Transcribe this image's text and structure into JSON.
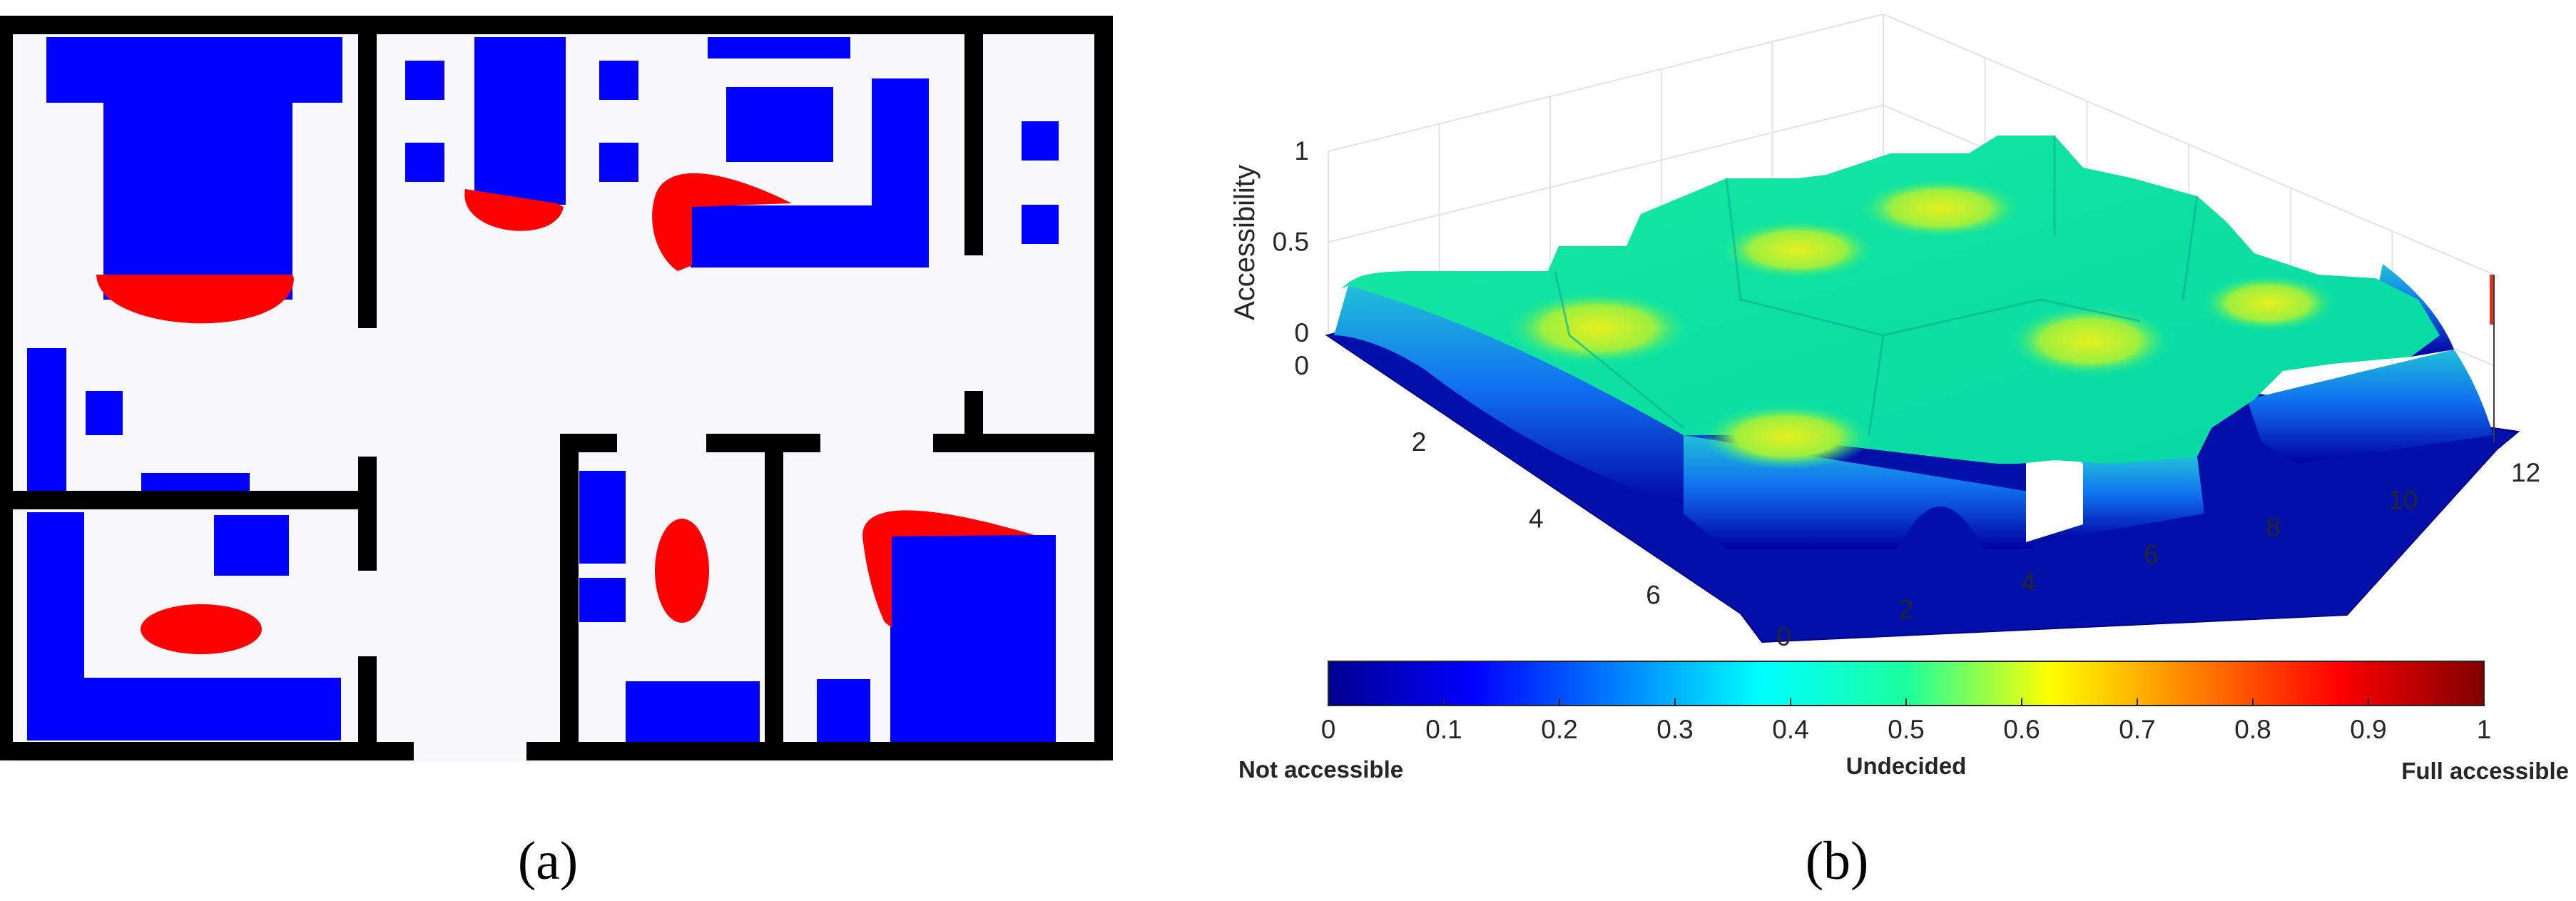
{
  "captions": {
    "a": "(a)",
    "b": "(b)"
  },
  "colors": {
    "wall": "#000000",
    "furniture": "#0000ff",
    "hotspot": "#ff0000",
    "floor": "#f8f8fc",
    "surface_low": "#0000a0",
    "surface_high": "#00e08c",
    "surface_peak": "#e6f01e"
  },
  "chart_data": [
    {
      "type": "heatmap",
      "title": "",
      "description_label": "(a)",
      "legend": []
    },
    {
      "type": "surface",
      "title": "",
      "zlabel": "Accessibility",
      "xlabel": "",
      "ylabel": "",
      "zlim": [
        0,
        1
      ],
      "z_ticks": [
        "0",
        "0.5",
        "1"
      ],
      "y_ticks": [
        "0",
        "2",
        "4",
        "6"
      ],
      "x_ticks": [
        "0",
        "2",
        "4",
        "6",
        "8",
        "10",
        "12"
      ],
      "grid": true,
      "colorbar": {
        "colormap": "jet",
        "range": [
          0,
          1
        ],
        "ticks": [
          "0",
          "0.1",
          "0.2",
          "0.3",
          "0.4",
          "0.5",
          "0.6",
          "0.7",
          "0.8",
          "0.9",
          "1"
        ],
        "labels": {
          "low": "Not accessible",
          "mid": "Undecided",
          "high": "Full accessible"
        }
      }
    }
  ]
}
